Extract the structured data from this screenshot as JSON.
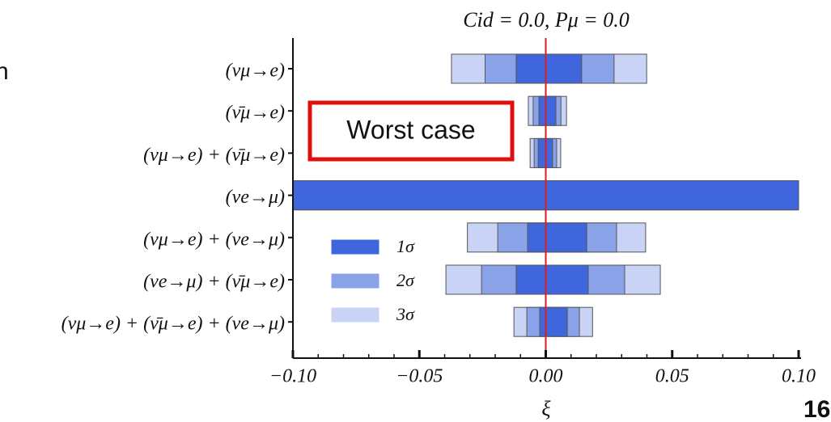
{
  "chart_data": {
    "type": "interval",
    "title": "Cid = 0.0,  Pμ = 0.0",
    "x_label": "ξ",
    "categories": [
      "(νμ→e)",
      "(ν̄μ→e)",
      "(νμ→e) + (ν̄μ→e)",
      "(νe→μ)",
      "(νμ→e) + (νe→μ)",
      "(νe→μ) + (ν̄μ→e)",
      "(νμ→e) + (ν̄μ→e) + (νe→μ)"
    ],
    "series": [
      {
        "name": "1σ",
        "color": "#3f66dd",
        "low": [
          -0.0117,
          -0.0027,
          -0.003,
          -0.1,
          -0.0072,
          -0.0117,
          -0.0024
        ],
        "high": [
          0.0142,
          0.004,
          0.0027,
          0.1,
          0.0162,
          0.0168,
          0.0085
        ]
      },
      {
        "name": "2σ",
        "color": "#8aa2e8",
        "low": [
          -0.024,
          -0.005,
          -0.0046,
          -0.1,
          -0.019,
          -0.0254,
          -0.0075
        ],
        "high": [
          0.027,
          0.006,
          0.0043,
          0.1,
          0.028,
          0.0312,
          0.0133
        ]
      },
      {
        "name": "3σ",
        "color": "#c8d3f5",
        "low": [
          -0.0373,
          -0.0069,
          -0.0062,
          -0.1,
          -0.031,
          -0.0395,
          -0.0126
        ],
        "high": [
          0.0399,
          0.0082,
          0.0059,
          0.1,
          0.0395,
          0.0453,
          0.0185
        ]
      }
    ],
    "xlim": [
      -0.1,
      0.1
    ],
    "xticks": [
      {
        "value": -0.1,
        "label": "−0.10"
      },
      {
        "value": -0.05,
        "label": "−0.05"
      },
      {
        "value": 0,
        "label": "0.00"
      },
      0.05,
      {
        "value": 0.1,
        "label": "0.10"
      }
    ],
    "xticks_minor": [
      -0.09,
      -0.08,
      -0.07,
      -0.06,
      -0.04,
      -0.03,
      -0.02,
      -0.01,
      0.01,
      0.02,
      0.03,
      0.04,
      0.06,
      0.07,
      0.08,
      0.09
    ],
    "reference_line": 0,
    "annotation": "Worst case",
    "edge_texts": [
      "n",
      "16"
    ]
  }
}
